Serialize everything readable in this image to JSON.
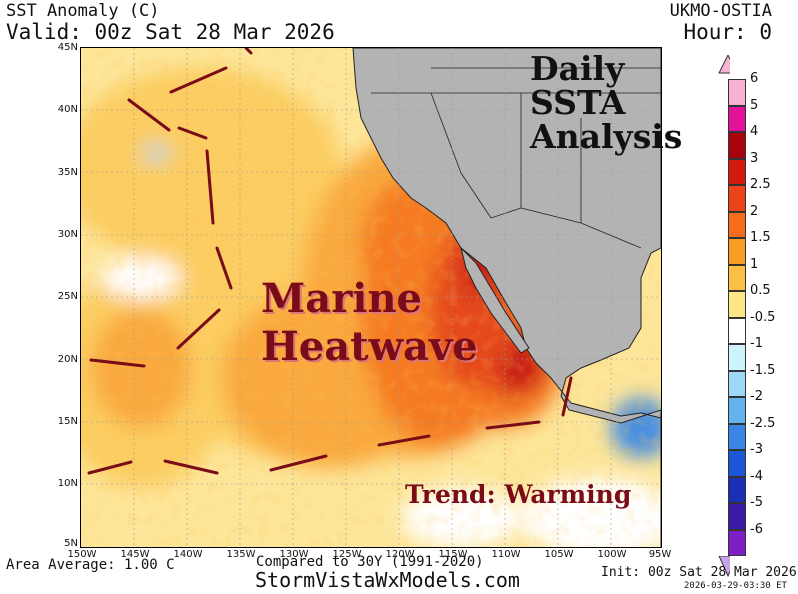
{
  "header": {
    "title": "SST Anomaly (C)",
    "valid": "Valid: 00z Sat 28 Mar 2026",
    "model": "UKMO-OSTIA",
    "hour": "Hour: 0"
  },
  "map": {
    "lat_labels": [
      "45N",
      "40N",
      "35N",
      "30N",
      "25N",
      "20N",
      "15N",
      "10N",
      "5N"
    ],
    "lon_labels": [
      "150W",
      "145W",
      "140W",
      "135W",
      "130W",
      "125W",
      "120W",
      "115W",
      "110W",
      "105W",
      "100W",
      "95W"
    ],
    "overlay": {
      "daily_lines": [
        "Daily",
        "SSTA",
        "Analysis"
      ],
      "heatwave_lines": [
        "Marine",
        "Heatwave"
      ],
      "trend": "Trend: Warming"
    },
    "colors": {
      "land": "#b3b3b3",
      "ocean_warm_1": "#fde69a",
      "ocean_warm_2": "#fbcd62",
      "ocean_warm_3": "#f9a93c",
      "ocean_hot_1": "#f57a20",
      "ocean_hot_2": "#e5481a",
      "ocean_hot_3": "#c61812",
      "dash_line": "#7a0b18"
    }
  },
  "legend": {
    "entries": [
      {
        "label": "6",
        "color": "#f6b3d4"
      },
      {
        "label": "5",
        "color": "#e6119a"
      },
      {
        "label": "4",
        "color": "#a8020c"
      },
      {
        "label": "3",
        "color": "#d41a0f"
      },
      {
        "label": "2.5",
        "color": "#ee4318"
      },
      {
        "label": "2",
        "color": "#f76d1e"
      },
      {
        "label": "1.5",
        "color": "#f99b24"
      },
      {
        "label": "1",
        "color": "#fbbf44"
      },
      {
        "label": "0.5",
        "color": "#fde686"
      },
      {
        "label": "-0.5",
        "color": "#ffffff"
      },
      {
        "label": "-1",
        "color": "#cdf4fb"
      },
      {
        "label": "-1.5",
        "color": "#9ed8f6"
      },
      {
        "label": "-2",
        "color": "#62b3ee"
      },
      {
        "label": "-2.5",
        "color": "#3a86e6"
      },
      {
        "label": "-3",
        "color": "#1e56d8"
      },
      {
        "label": "-4",
        "color": "#1c2fb4"
      },
      {
        "label": "-5",
        "color": "#3a1aa4"
      },
      {
        "label": "-6",
        "color": "#7e1ec6"
      }
    ],
    "bottom_color": "#c5a3e6"
  },
  "footer": {
    "area_average": "Area Average: 1.00 C",
    "compared": "Compared to 30Y (1991-2020)",
    "site": "StormVistaWxModels.com",
    "init": "Init: 00z Sat 28 Mar 2026",
    "stamp": "2026-03-29-03:30 ET"
  }
}
